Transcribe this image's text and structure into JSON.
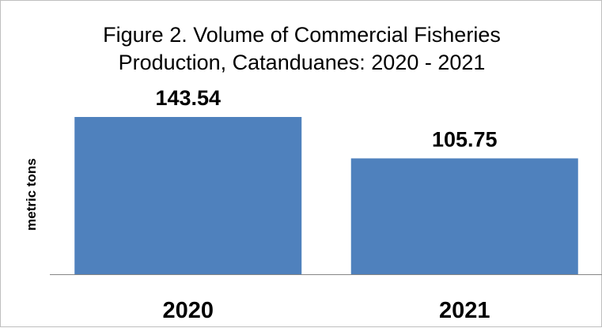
{
  "chart_data": {
    "type": "bar",
    "title_lines": [
      "Figure 2. Volume of Commercial Fisheries",
      "Production, Catanduanes: 2020 - 2021"
    ],
    "xlabel": "",
    "ylabel": "metric tons",
    "categories": [
      "2020",
      "2021"
    ],
    "values": [
      143.54,
      105.75
    ],
    "data_labels": [
      "143.54",
      "105.75"
    ],
    "ylim": [
      0,
      143.54
    ],
    "grid": false,
    "legend": "none",
    "bar_color": "#4f81bd",
    "axis_color": "#868686"
  }
}
